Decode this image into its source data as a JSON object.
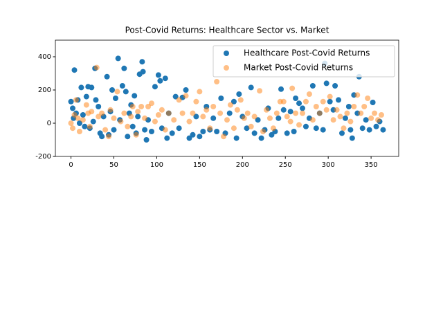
{
  "chart_data": {
    "type": "scatter",
    "title": "Post-Covid Returns: Healthcare Sector vs. Market",
    "xlim": [
      -18.2,
      382.2
    ],
    "ylim": [
      -200,
      500
    ],
    "xticks": [
      0,
      50,
      100,
      150,
      200,
      250,
      300,
      350
    ],
    "yticks": [
      -200,
      0,
      200,
      400
    ],
    "legend": "upper right",
    "series": [
      {
        "name": "Healthcare Post-Covid Returns",
        "color": "#1f77b4",
        "alpha": 1,
        "x": [
          0,
          2,
          3,
          4,
          6,
          8,
          10,
          12,
          14,
          16,
          18,
          20,
          22,
          24,
          26,
          28,
          29,
          32,
          34,
          36,
          38,
          42,
          44,
          46,
          48,
          50,
          52,
          55,
          57,
          60,
          62,
          64,
          66,
          68,
          70,
          72,
          74,
          76,
          78,
          80,
          83,
          84,
          86,
          88,
          90,
          94,
          98,
          102,
          104,
          106,
          110,
          112,
          114,
          118,
          122,
          126,
          130,
          134,
          138,
          142,
          146,
          150,
          154,
          158,
          162,
          166,
          170,
          175,
          180,
          185,
          190,
          193,
          196,
          200,
          205,
          210,
          214,
          218,
          222,
          226,
          230,
          234,
          238,
          242,
          245,
          248,
          252,
          256,
          260,
          262,
          266,
          270,
          274,
          278,
          282,
          286,
          290,
          294,
          296,
          298,
          302,
          306,
          308,
          312,
          316,
          320,
          324,
          326,
          328,
          330,
          334,
          336,
          340,
          344,
          348,
          352,
          356,
          360,
          364
        ],
        "values": [
          130,
          90,
          30,
          320,
          60,
          140,
          0,
          215,
          50,
          -20,
          160,
          220,
          -30,
          215,
          10,
          330,
          140,
          100,
          -60,
          -80,
          40,
          280,
          -70,
          70,
          200,
          -40,
          150,
          390,
          20,
          225,
          330,
          190,
          -80,
          60,
          110,
          -20,
          165,
          -60,
          40,
          295,
          370,
          310,
          -40,
          -100,
          20,
          -50,
          220,
          290,
          255,
          -30,
          270,
          -90,
          60,
          -60,
          160,
          -30,
          155,
          200,
          -90,
          -70,
          40,
          -80,
          -50,
          100,
          -40,
          30,
          -50,
          150,
          -60,
          60,
          130,
          -90,
          175,
          40,
          -30,
          215,
          -60,
          20,
          -90,
          -40,
          90,
          -70,
          -50,
          30,
          205,
          80,
          -60,
          70,
          -50,
          150,
          120,
          90,
          -20,
          30,
          225,
          -30,
          60,
          -40,
          360,
          240,
          130,
          80,
          225,
          140,
          -60,
          30,
          100,
          -40,
          -90,
          170,
          60,
          280,
          -30,
          20,
          -40,
          125,
          -20,
          10,
          -40
        ]
      },
      {
        "name": "Market Post-Covid Returns",
        "color": "#ff7f0e",
        "alpha": 0.5,
        "x": [
          0,
          2,
          4,
          6,
          8,
          10,
          14,
          18,
          20,
          22,
          24,
          30,
          32,
          36,
          40,
          44,
          46,
          50,
          54,
          58,
          62,
          66,
          70,
          72,
          76,
          78,
          82,
          86,
          90,
          94,
          98,
          102,
          106,
          110,
          114,
          120,
          126,
          130,
          134,
          138,
          142,
          146,
          150,
          154,
          158,
          162,
          166,
          170,
          174,
          178,
          182,
          186,
          190,
          194,
          198,
          202,
          206,
          210,
          214,
          220,
          224,
          228,
          232,
          236,
          240,
          244,
          248,
          252,
          256,
          258,
          262,
          266,
          270,
          274,
          278,
          282,
          286,
          290,
          294,
          298,
          302,
          306,
          310,
          314,
          318,
          322,
          326,
          330,
          334,
          338,
          342,
          346,
          350,
          354,
          358,
          362
        ],
        "values": [
          0,
          -30,
          50,
          140,
          30,
          -50,
          20,
          110,
          60,
          -20,
          70,
          335,
          40,
          60,
          -40,
          -80,
          80,
          30,
          190,
          10,
          60,
          -20,
          40,
          100,
          -70,
          70,
          100,
          30,
          100,
          120,
          10,
          50,
          80,
          -40,
          60,
          20,
          140,
          60,
          165,
          10,
          60,
          130,
          190,
          40,
          80,
          -30,
          100,
          250,
          60,
          -80,
          20,
          110,
          -30,
          80,
          140,
          30,
          60,
          -20,
          40,
          195,
          -50,
          80,
          30,
          -30,
          60,
          130,
          130,
          40,
          10,
          210,
          60,
          -10,
          60,
          130,
          175,
          20,
          100,
          60,
          130,
          80,
          160,
          20,
          80,
          40,
          -30,
          60,
          10,
          100,
          170,
          60,
          100,
          150,
          30,
          60,
          20,
          50
        ]
      }
    ]
  }
}
